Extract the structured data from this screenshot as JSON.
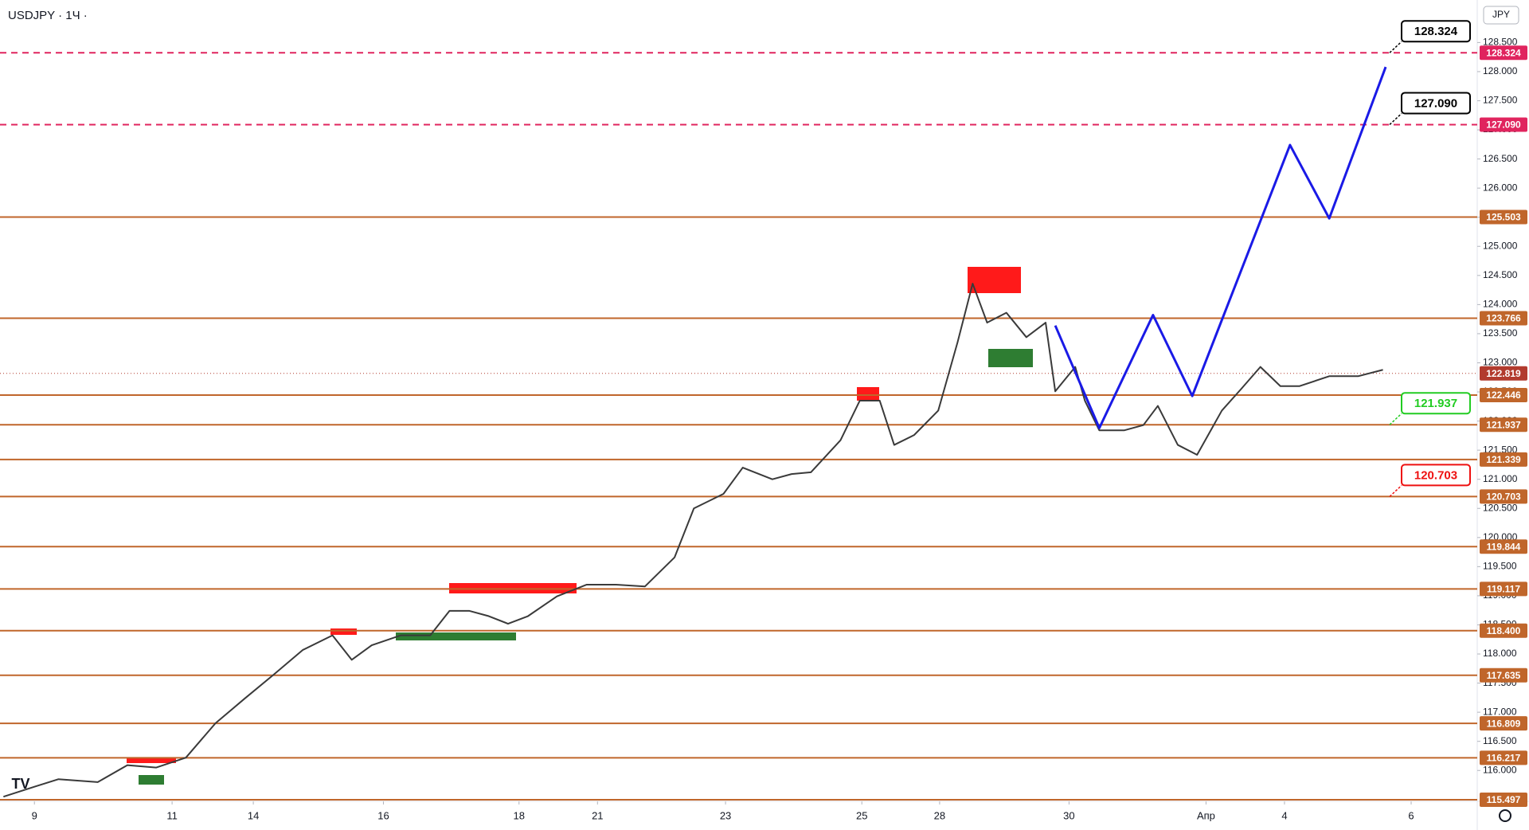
{
  "chart_data": {
    "type": "line",
    "title": "USDJPY · 1Ч ·",
    "currency": "JPY",
    "xlim": [
      -0.5,
      20.96
    ],
    "ylim": [
      115.47,
      129.23
    ],
    "xticks": [
      {
        "value": 0,
        "label": "9"
      },
      {
        "value": 2,
        "label": "11"
      },
      {
        "value": 3.18,
        "label": "14"
      },
      {
        "value": 5.07,
        "label": "16"
      },
      {
        "value": 7.04,
        "label": "18"
      },
      {
        "value": 8.18,
        "label": "21"
      },
      {
        "value": 10.04,
        "label": "23"
      },
      {
        "value": 12.02,
        "label": "25"
      },
      {
        "value": 13.15,
        "label": "28"
      },
      {
        "value": 15.03,
        "label": "30"
      },
      {
        "value": 17.02,
        "label": "Апр"
      },
      {
        "value": 18.16,
        "label": "4"
      },
      {
        "value": 20,
        "label": "6"
      }
    ],
    "yticks": [
      {
        "value": 116,
        "label": "116.000"
      },
      {
        "value": 116.5,
        "label": "116.500"
      },
      {
        "value": 117,
        "label": "117.000"
      },
      {
        "value": 117.5,
        "label": "117.500"
      },
      {
        "value": 118,
        "label": "118.000"
      },
      {
        "value": 118.5,
        "label": "118.500"
      },
      {
        "value": 119,
        "label": "119.000"
      },
      {
        "value": 119.5,
        "label": "119.500"
      },
      {
        "value": 120,
        "label": "120.000"
      },
      {
        "value": 120.5,
        "label": "120.500"
      },
      {
        "value": 121,
        "label": "121.000"
      },
      {
        "value": 121.5,
        "label": "121.500"
      },
      {
        "value": 122,
        "label": "122.000"
      },
      {
        "value": 122.5,
        "label": "122.500"
      },
      {
        "value": 123,
        "label": "123.000"
      },
      {
        "value": 123.5,
        "label": "123.500"
      },
      {
        "value": 124,
        "label": "124.000"
      },
      {
        "value": 124.5,
        "label": "124.500"
      },
      {
        "value": 125,
        "label": "125.000"
      },
      {
        "value": 125.5,
        "label": "125.500"
      },
      {
        "value": 126,
        "label": "126.000"
      },
      {
        "value": 126.5,
        "label": "126.500"
      },
      {
        "value": 127,
        "label": "127.000"
      },
      {
        "value": 127.5,
        "label": "127.500"
      },
      {
        "value": 128,
        "label": "128.000"
      },
      {
        "value": 128.5,
        "label": "128.500"
      }
    ],
    "level_color": "#c0662b",
    "levels": [
      {
        "value": 125.503,
        "label": "125.503"
      },
      {
        "value": 123.766,
        "label": "123.766"
      },
      {
        "value": 122.446,
        "label": "122.446"
      },
      {
        "value": 121.937,
        "label": "121.937"
      },
      {
        "value": 121.339,
        "label": "121.339"
      },
      {
        "value": 120.703,
        "label": "120.703"
      },
      {
        "value": 119.844,
        "label": "119.844"
      },
      {
        "value": 119.117,
        "label": "119.117"
      },
      {
        "value": 118.4,
        "label": "118.400"
      },
      {
        "value": 117.635,
        "label": "117.635"
      },
      {
        "value": 116.809,
        "label": "116.809"
      },
      {
        "value": 116.217,
        "label": "116.217"
      },
      {
        "value": 115.497,
        "label": "115.497"
      }
    ],
    "target_color": "#e0245e",
    "targets": [
      {
        "value": 128.324,
        "label": "128.324"
      },
      {
        "value": 127.09,
        "label": "127.090"
      }
    ],
    "current_price": {
      "value": 122.819,
      "label": "122.819",
      "color": "#b23b2e"
    },
    "annotations": [
      {
        "value": 128.324,
        "label": "128.324",
        "color": "#000000"
      },
      {
        "value": 127.09,
        "label": "127.090",
        "color": "#000000"
      },
      {
        "value": 121.937,
        "label": "121.937",
        "color": "#22cc22"
      },
      {
        "value": 120.703,
        "label": "120.703",
        "color": "#ee1111"
      }
    ],
    "series": [
      {
        "color": "#3a3a3a",
        "x": [
          -0.45,
          0,
          0.35,
          0.92,
          1.35,
          1.77,
          2.2,
          2.63,
          3.05,
          3.48,
          3.9,
          4.33,
          4.61,
          4.9,
          5.32,
          5.75,
          6.03,
          6.32,
          6.6,
          6.88,
          7.17,
          7.59,
          8.02,
          8.45,
          8.87,
          9.3,
          9.58,
          10.01,
          10.29,
          10.72,
          11.0,
          11.28,
          11.71,
          11.99,
          12.28,
          12.49,
          12.78,
          13.13,
          13.41,
          13.63,
          13.84,
          14.12,
          14.41,
          14.69,
          14.83,
          15.12,
          15.26,
          15.47,
          15.83,
          16.11,
          16.32,
          16.61,
          16.89,
          17.25,
          17.53,
          17.81,
          18.1,
          18.38,
          18.81,
          19.23,
          19.59
        ],
        "values": [
          115.55,
          115.72,
          115.85,
          115.8,
          116.09,
          116.05,
          116.22,
          116.81,
          117.23,
          117.65,
          118.07,
          118.32,
          117.9,
          118.15,
          118.32,
          118.32,
          118.74,
          118.74,
          118.65,
          118.52,
          118.65,
          118.99,
          119.19,
          119.19,
          119.16,
          119.66,
          120.5,
          120.75,
          121.2,
          121.0,
          121.09,
          121.12,
          121.67,
          122.35,
          122.35,
          121.59,
          121.76,
          122.18,
          123.35,
          124.36,
          123.69,
          123.86,
          123.44,
          123.69,
          122.51,
          122.93,
          122.35,
          121.84,
          121.84,
          121.93,
          122.26,
          121.59,
          121.42,
          122.18,
          122.55,
          122.93,
          122.6,
          122.6,
          122.77,
          122.77,
          122.88
        ]
      },
      {
        "color": "#1a1ae6",
        "x": [
          14.83,
          15.47,
          16.25,
          16.82,
          18.24,
          18.81,
          19.63
        ],
        "values": [
          123.64,
          121.88,
          123.82,
          122.43,
          126.74,
          125.48,
          128.08
        ]
      }
    ]
  }
}
